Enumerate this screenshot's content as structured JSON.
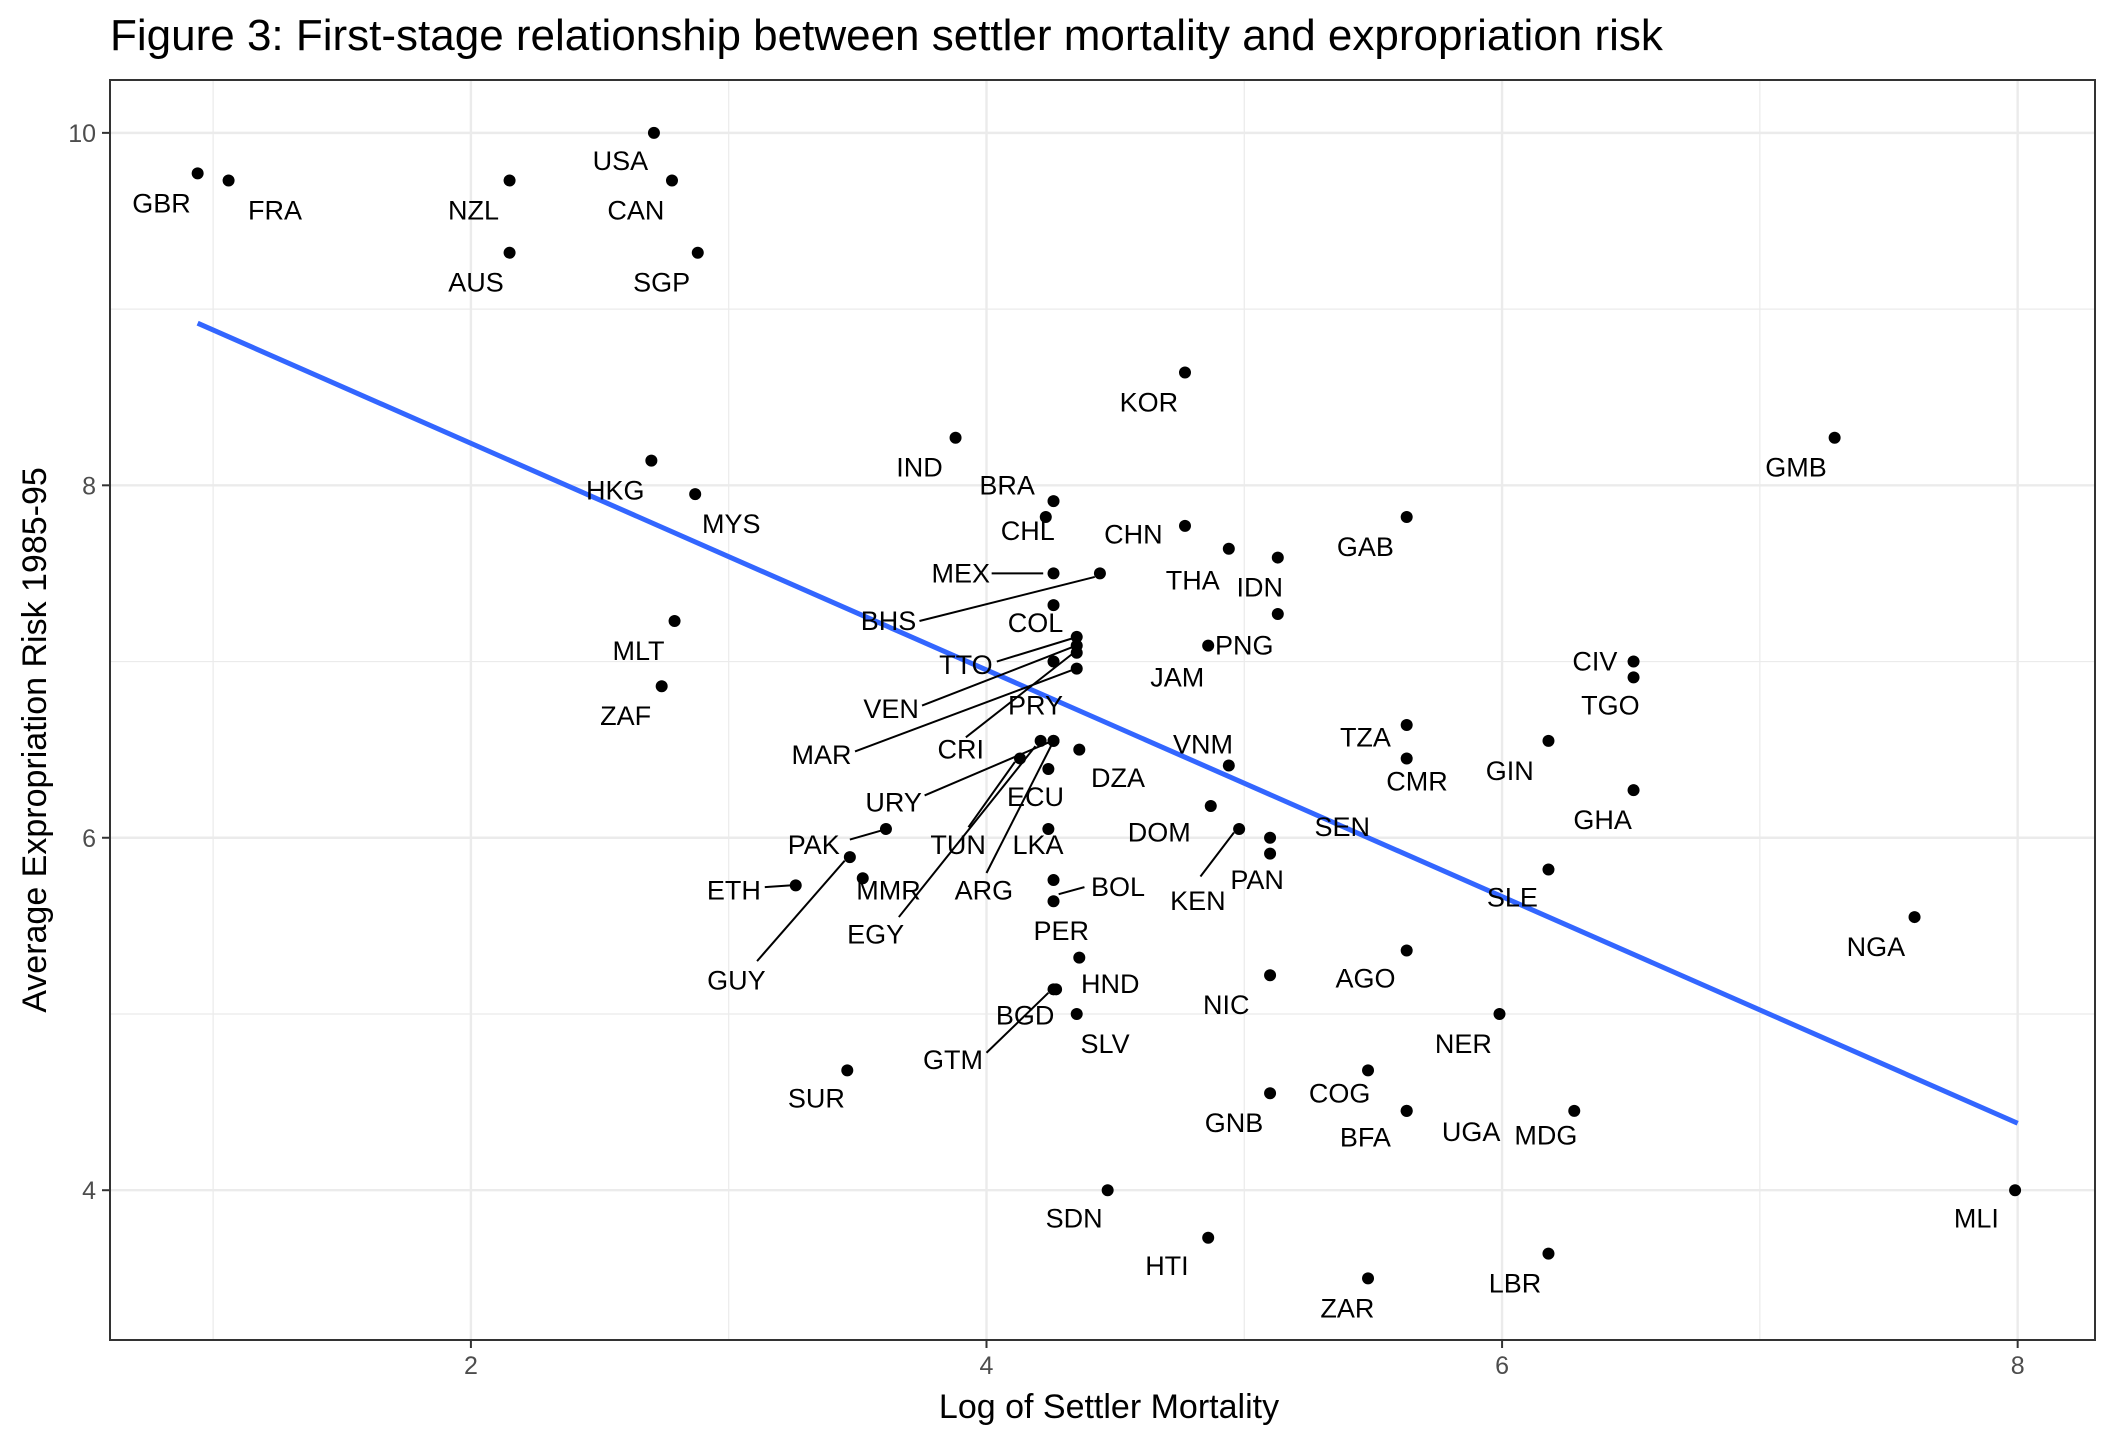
{
  "chart_data": {
    "type": "scatter",
    "title": "Figure 3: First-stage relationship between settler mortality and expropriation risk",
    "xlabel": "Log of Settler Mortality",
    "ylabel": "Average Expropriation Risk 1985-95",
    "xlim": [
      0.6,
      8.3
    ],
    "ylim": [
      3.15,
      10.3
    ],
    "x_ticks": [
      2,
      4,
      6,
      8
    ],
    "y_ticks": [
      4,
      6,
      8,
      10
    ],
    "grid": true,
    "legend": "none",
    "colors": {
      "points": "#000000",
      "fit_line": "#3366FF",
      "grid": "#ebebeb",
      "frame": "#333333"
    },
    "fit_line": {
      "x": [
        0.94,
        8.0
      ],
      "y": [
        8.92,
        4.38
      ]
    },
    "points": [
      {
        "label": "GBR",
        "x": 0.94,
        "y": 9.77,
        "lx": 0.8,
        "ly": 9.6
      },
      {
        "label": "FRA",
        "x": 1.06,
        "y": 9.73,
        "lx": 1.24,
        "ly": 9.56
      },
      {
        "label": "USA",
        "x": 2.71,
        "y": 10.0,
        "lx": 2.58,
        "ly": 9.84
      },
      {
        "label": "NZL",
        "x": 2.15,
        "y": 9.73,
        "lx": 2.01,
        "ly": 9.56
      },
      {
        "label": "CAN",
        "x": 2.78,
        "y": 9.73,
        "lx": 2.64,
        "ly": 9.56
      },
      {
        "label": "AUS",
        "x": 2.15,
        "y": 9.32,
        "lx": 2.02,
        "ly": 9.15
      },
      {
        "label": "SGP",
        "x": 2.88,
        "y": 9.32,
        "lx": 2.74,
        "ly": 9.15
      },
      {
        "label": "KOR",
        "x": 4.77,
        "y": 8.64,
        "lx": 4.63,
        "ly": 8.47
      },
      {
        "label": "GMB",
        "x": 7.29,
        "y": 8.27,
        "lx": 7.14,
        "ly": 8.1
      },
      {
        "label": "IND",
        "x": 3.88,
        "y": 8.27,
        "lx": 3.74,
        "ly": 8.1
      },
      {
        "label": "HKG",
        "x": 2.7,
        "y": 8.14,
        "lx": 2.56,
        "ly": 7.97
      },
      {
        "label": "MYS",
        "x": 2.87,
        "y": 7.95,
        "lx": 3.01,
        "ly": 7.78
      },
      {
        "label": "BRA",
        "x": 4.26,
        "y": 7.91,
        "lx": 4.08,
        "ly": 8.0
      },
      {
        "label": "CHL",
        "x": 4.23,
        "y": 7.82,
        "lx": 4.16,
        "ly": 7.74
      },
      {
        "label": "CHN",
        "x": 4.77,
        "y": 7.77,
        "lx": 4.57,
        "ly": 7.72
      },
      {
        "label": "GAB",
        "x": 5.63,
        "y": 7.82,
        "lx": 5.47,
        "ly": 7.65
      },
      {
        "label": "THA",
        "x": 4.94,
        "y": 7.64,
        "lx": 4.8,
        "ly": 7.46
      },
      {
        "label": "IDN",
        "x": 5.13,
        "y": 7.59,
        "lx": 5.06,
        "ly": 7.42
      },
      {
        "label": "MEX",
        "x": 4.26,
        "y": 7.5,
        "lx": 3.9,
        "ly": 7.5,
        "line": [
          4.02,
          7.5,
          4.22,
          7.5
        ]
      },
      {
        "label": "BHS",
        "x": 4.44,
        "y": 7.5,
        "lx": 3.62,
        "ly": 7.23,
        "line": [
          3.74,
          7.23,
          4.42,
          7.48
        ]
      },
      {
        "label": "COL",
        "x": 4.26,
        "y": 7.32,
        "lx": 4.19,
        "ly": 7.22
      },
      {
        "label": "PNG",
        "x": 5.13,
        "y": 7.27,
        "lx": 5.0,
        "ly": 7.09
      },
      {
        "label": "MLT",
        "x": 2.79,
        "y": 7.23,
        "lx": 2.65,
        "ly": 7.06
      },
      {
        "label": "TTO",
        "x": 4.35,
        "y": 7.14,
        "lx": 3.92,
        "ly": 6.98,
        "line": [
          4.04,
          7.0,
          4.33,
          7.13
        ]
      },
      {
        "label": "JAM",
        "x": 4.86,
        "y": 7.09,
        "lx": 4.74,
        "ly": 6.91
      },
      {
        "label": "CIV",
        "x": 6.51,
        "y": 7.0,
        "lx": 6.36,
        "ly": 7.0
      },
      {
        "label": "TGO",
        "x": 6.51,
        "y": 6.91,
        "lx": 6.42,
        "ly": 6.75
      },
      {
        "label": "VEN",
        "x": 4.35,
        "y": 7.09,
        "lx": 3.63,
        "ly": 6.73,
        "line": [
          3.75,
          6.75,
          4.33,
          7.08
        ]
      },
      {
        "label": "PRY",
        "x": 4.35,
        "y": 7.05,
        "lx": 4.19,
        "ly": 6.75,
        "line": [
          3.92,
          6.57,
          4.33,
          7.04
        ]
      },
      {
        "label": "ZAF",
        "x": 2.74,
        "y": 6.86,
        "lx": 2.6,
        "ly": 6.69
      },
      {
        "label": "MAR",
        "x": 4.35,
        "y": 6.96,
        "lx": 3.36,
        "ly": 6.47,
        "line": [
          3.49,
          6.49,
          4.33,
          6.95
        ]
      },
      {
        "label": "CRI",
        "x": 4.26,
        "y": 7.0,
        "lx": 3.9,
        "ly": 6.5
      },
      {
        "label": "TZA",
        "x": 5.63,
        "y": 6.64,
        "lx": 5.47,
        "ly": 6.57
      },
      {
        "label": "VNM",
        "x": 4.94,
        "y": 6.41,
        "lx": 4.84,
        "ly": 6.53
      },
      {
        "label": "CMR",
        "x": 5.63,
        "y": 6.45,
        "lx": 5.67,
        "ly": 6.32
      },
      {
        "label": "GIN",
        "x": 6.18,
        "y": 6.55,
        "lx": 6.03,
        "ly": 6.38
      },
      {
        "label": "DZA",
        "x": 4.36,
        "y": 6.5,
        "lx": 4.51,
        "ly": 6.34
      },
      {
        "label": "URY",
        "x": 4.26,
        "y": 6.55,
        "lx": 3.64,
        "ly": 6.2,
        "line": [
          3.76,
          6.24,
          4.24,
          6.54
        ]
      },
      {
        "label": "ECU",
        "x": 4.24,
        "y": 6.39,
        "lx": 4.19,
        "ly": 6.23
      },
      {
        "label": "GHA",
        "x": 6.51,
        "y": 6.27,
        "lx": 6.39,
        "ly": 6.1
      },
      {
        "label": "TUN",
        "x": 4.13,
        "y": 6.45,
        "lx": 3.89,
        "ly": 5.96,
        "line": [
          3.93,
          6.06,
          4.11,
          6.43
        ]
      },
      {
        "label": "PAK",
        "x": 3.61,
        "y": 6.05,
        "lx": 3.33,
        "ly": 5.96,
        "line": [
          3.47,
          5.99,
          3.59,
          6.04
        ]
      },
      {
        "label": "DOM",
        "x": 4.87,
        "y": 6.18,
        "lx": 4.67,
        "ly": 6.03
      },
      {
        "label": "SEN",
        "x": 5.1,
        "y": 6.0,
        "lx": 5.38,
        "ly": 6.06
      },
      {
        "label": "LKA",
        "x": 4.24,
        "y": 6.05,
        "lx": 4.2,
        "ly": 5.96
      },
      {
        "label": "PAN",
        "x": 5.1,
        "y": 5.91,
        "lx": 5.05,
        "ly": 5.76
      },
      {
        "label": "ARG",
        "x": 4.26,
        "y": 6.55,
        "lx": 3.99,
        "ly": 5.7,
        "line": [
          4.0,
          5.8,
          4.25,
          6.52
        ]
      },
      {
        "label": "EGY",
        "x": 4.21,
        "y": 6.55,
        "lx": 3.57,
        "ly": 5.45,
        "line": [
          3.66,
          5.55,
          4.19,
          6.52
        ]
      },
      {
        "label": "KEN",
        "x": 4.98,
        "y": 6.05,
        "lx": 4.82,
        "ly": 5.64,
        "line": [
          4.83,
          5.78,
          4.96,
          6.03
        ]
      },
      {
        "label": "BOL",
        "x": 4.26,
        "y": 5.76,
        "lx": 4.51,
        "ly": 5.72,
        "line": [
          4.38,
          5.72,
          4.28,
          5.68
        ]
      },
      {
        "label": "PER",
        "x": 4.26,
        "y": 5.64,
        "lx": 4.29,
        "ly": 5.47
      },
      {
        "label": "ETH",
        "x": 3.26,
        "y": 5.73,
        "lx": 3.02,
        "ly": 5.7,
        "line": [
          3.14,
          5.72,
          3.24,
          5.73
        ]
      },
      {
        "label": "MMR",
        "x": 3.52,
        "y": 5.77,
        "lx": 3.62,
        "ly": 5.7
      },
      {
        "label": "GUY",
        "x": 3.47,
        "y": 5.89,
        "lx": 3.03,
        "ly": 5.19,
        "line": [
          3.11,
          5.3,
          3.45,
          5.87
        ]
      },
      {
        "label": "SLE",
        "x": 6.18,
        "y": 5.82,
        "lx": 6.04,
        "ly": 5.66
      },
      {
        "label": "NGA",
        "x": 7.6,
        "y": 5.55,
        "lx": 7.45,
        "ly": 5.38
      },
      {
        "label": "HND",
        "x": 4.36,
        "y": 5.32,
        "lx": 4.48,
        "ly": 5.17
      },
      {
        "label": "AGO",
        "x": 5.63,
        "y": 5.36,
        "lx": 5.47,
        "ly": 5.2
      },
      {
        "label": "NIC",
        "x": 5.1,
        "y": 5.22,
        "lx": 4.93,
        "ly": 5.05
      },
      {
        "label": "BGD",
        "x": 4.27,
        "y": 5.14,
        "lx": 4.15,
        "ly": 4.99
      },
      {
        "label": "GTM",
        "x": 4.26,
        "y": 5.14,
        "lx": 3.87,
        "ly": 4.74,
        "line": [
          4.0,
          4.78,
          4.24,
          5.12
        ]
      },
      {
        "label": "SLV",
        "x": 4.35,
        "y": 5.0,
        "lx": 4.46,
        "ly": 4.83
      },
      {
        "label": "NER",
        "x": 5.99,
        "y": 5.0,
        "lx": 5.85,
        "ly": 4.83
      },
      {
        "label": "SUR",
        "x": 3.46,
        "y": 4.68,
        "lx": 3.34,
        "ly": 4.52
      },
      {
        "label": "COG",
        "x": 5.48,
        "y": 4.68,
        "lx": 5.37,
        "ly": 4.55
      },
      {
        "label": "GNB",
        "x": 5.1,
        "y": 4.55,
        "lx": 4.96,
        "ly": 4.38
      },
      {
        "label": "BFA",
        "x": 5.63,
        "y": 4.45,
        "lx": 5.47,
        "ly": 4.3
      },
      {
        "label": "UGA",
        "x": 5.63,
        "y": 4.45,
        "lx": 5.88,
        "ly": 4.33
      },
      {
        "label": "MDG",
        "x": 6.28,
        "y": 4.45,
        "lx": 6.17,
        "ly": 4.31
      },
      {
        "label": "SDN",
        "x": 4.47,
        "y": 4.0,
        "lx": 4.34,
        "ly": 3.84
      },
      {
        "label": "MLI",
        "x": 7.99,
        "y": 4.0,
        "lx": 7.84,
        "ly": 3.84
      },
      {
        "label": "HTI",
        "x": 4.86,
        "y": 3.73,
        "lx": 4.7,
        "ly": 3.57
      },
      {
        "label": "LBR",
        "x": 6.18,
        "y": 3.64,
        "lx": 6.05,
        "ly": 3.47
      },
      {
        "label": "ZAR",
        "x": 5.48,
        "y": 3.5,
        "lx": 5.4,
        "ly": 3.33
      }
    ]
  }
}
